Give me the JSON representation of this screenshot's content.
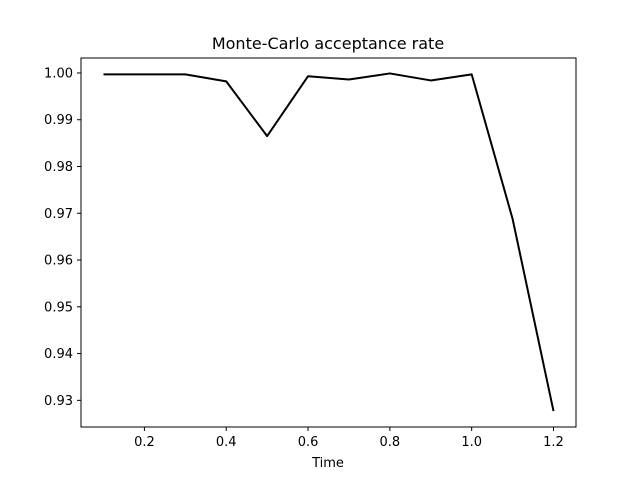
{
  "chart_data": {
    "type": "line",
    "title": "Monte-Carlo acceptance rate",
    "xlabel": "Time",
    "ylabel": "",
    "xlim": [
      0.045,
      1.255
    ],
    "ylim": [
      0.9243,
      1.0032
    ],
    "xticks": [
      0.2,
      0.4,
      0.6,
      0.8,
      1.0,
      1.2
    ],
    "xtick_labels": [
      "0.2",
      "0.4",
      "0.6",
      "0.8",
      "1.0",
      "1.2"
    ],
    "yticks": [
      0.93,
      0.94,
      0.95,
      0.96,
      0.97,
      0.98,
      0.99,
      1.0
    ],
    "ytick_labels": [
      "0.93",
      "0.94",
      "0.95",
      "0.96",
      "0.97",
      "0.98",
      "0.99",
      "1.00"
    ],
    "grid": false,
    "legend": "none",
    "series": [
      {
        "color": "#000000",
        "x": [
          0.1,
          0.2,
          0.3,
          0.4,
          0.5,
          0.6,
          0.7,
          0.8,
          0.9,
          1.0,
          1.1,
          1.2
        ],
        "y": [
          0.9997,
          0.9997,
          0.9997,
          0.9982,
          0.9865,
          0.9993,
          0.9986,
          0.9999,
          0.9984,
          0.9997,
          0.9688,
          0.9277
        ]
      }
    ]
  }
}
